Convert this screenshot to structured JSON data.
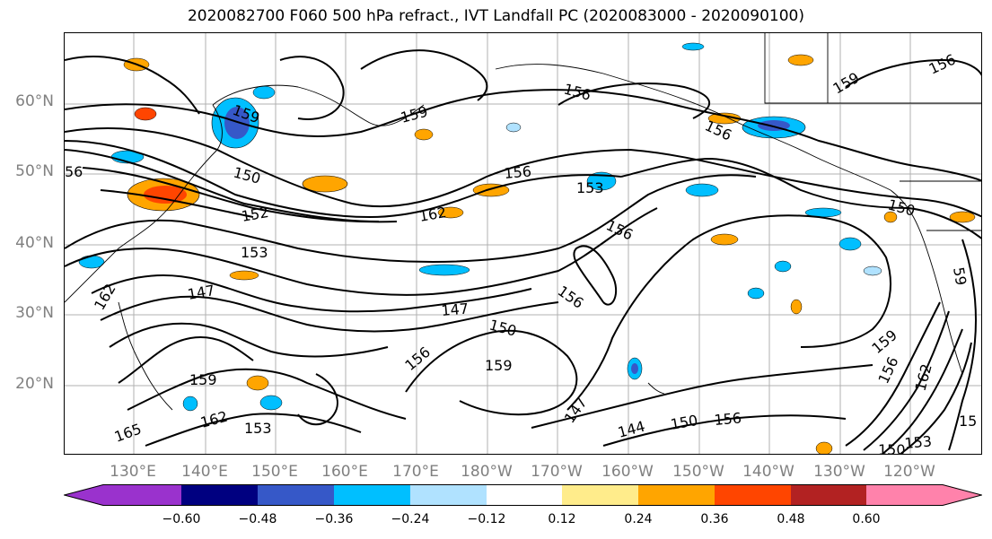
{
  "title": "2020082700 F060 500 hPa refract., IVT Landfall PC (2020083000 - 2020090100)",
  "lat_labels": [
    "60°N",
    "50°N",
    "40°N",
    "30°N",
    "20°N"
  ],
  "lon_labels": [
    "130°E",
    "140°E",
    "150°E",
    "160°E",
    "170°E",
    "180°W",
    "170°W",
    "160°W",
    "150°W",
    "140°W",
    "130°W",
    "120°W"
  ],
  "contour_labels": [
    "159",
    "156",
    "159",
    "156",
    "156",
    "150",
    "156",
    "159",
    "156",
    "153",
    "162",
    "150",
    "152",
    "153",
    "147",
    "156",
    "150",
    "147",
    "156",
    "162",
    "159",
    "159",
    "165",
    "162",
    "153",
    "147",
    "144",
    "150",
    "156",
    "153",
    "150",
    "162",
    "156",
    "159",
    "15",
    "59",
    "56"
  ],
  "colorbar": {
    "ticks": [
      "−0.60",
      "−0.48",
      "−0.36",
      "−0.24",
      "−0.12",
      "0.12",
      "0.24",
      "0.36",
      "0.48",
      "0.60"
    ],
    "colors": [
      "#9a32cd",
      "#000080",
      "#3658c8",
      "#00bfff",
      "#b0e2ff",
      "#ffffff",
      "#ffec8b",
      "#ffa500",
      "#ff4500",
      "#b22222",
      "#ff82ab"
    ]
  }
}
